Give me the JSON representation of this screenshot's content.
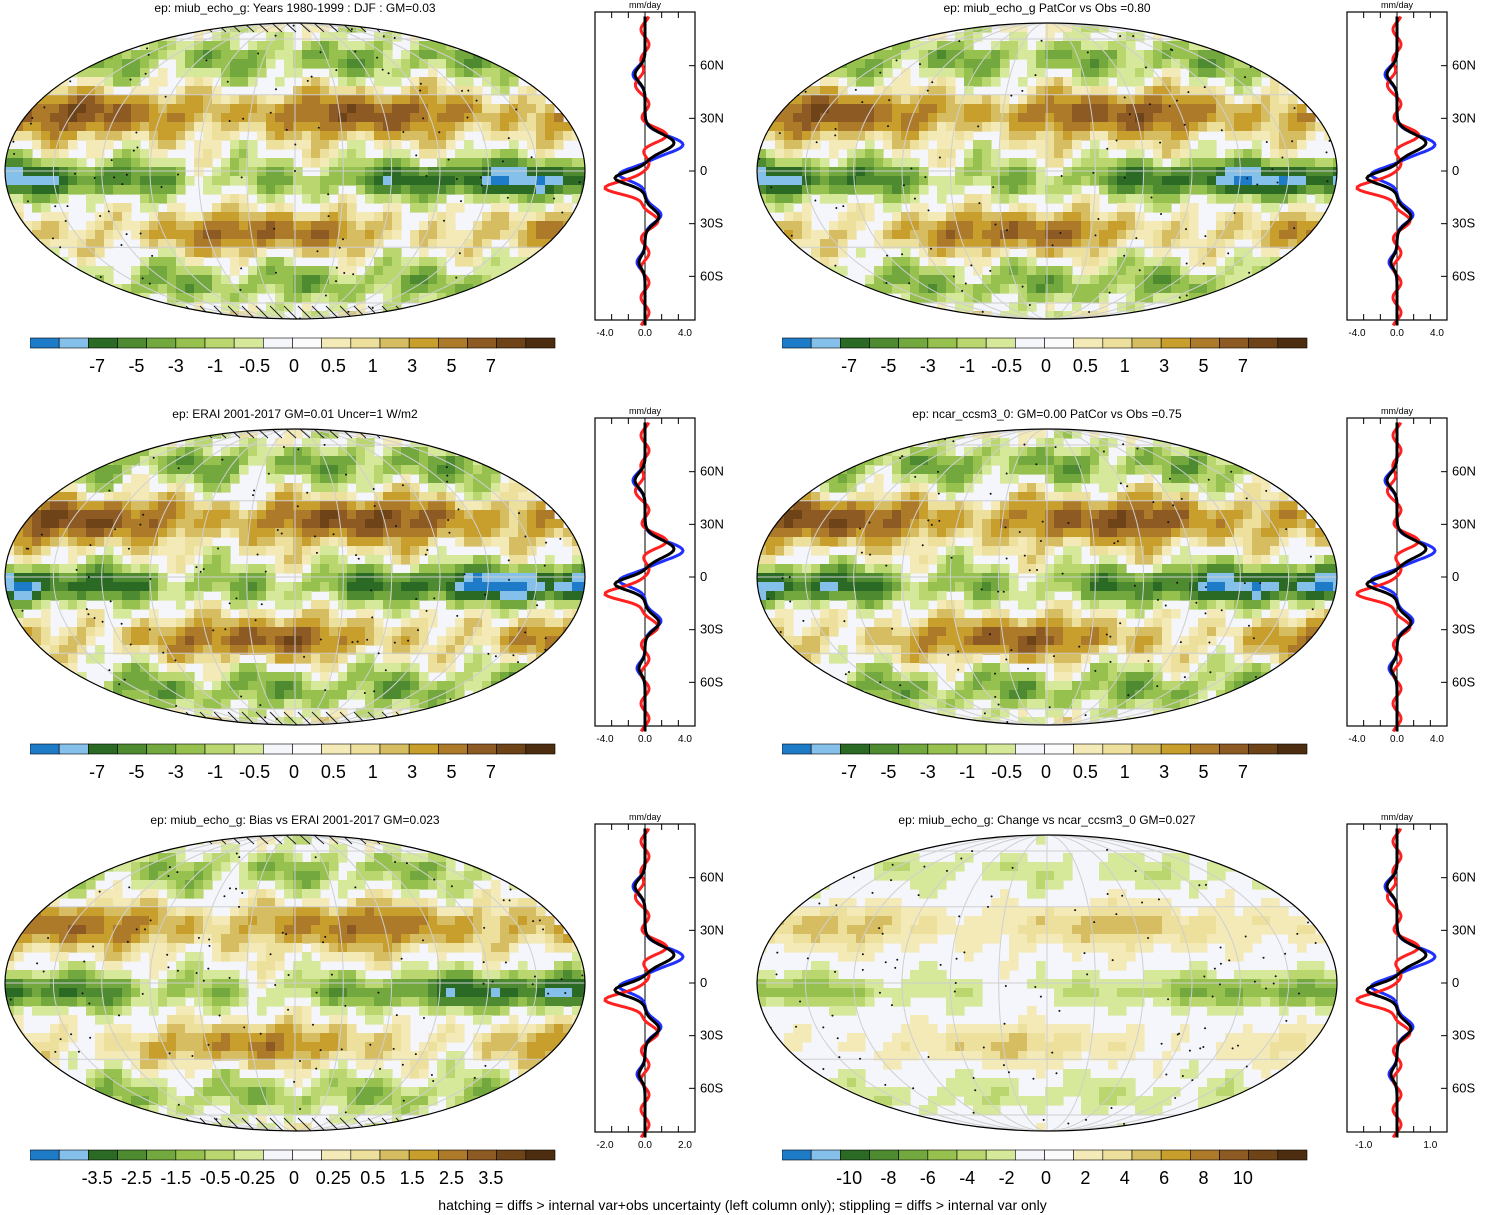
{
  "colors": {
    "palette": [
      "#1e7bc8",
      "#84c0ea",
      "#2b6a25",
      "#4e8a2f",
      "#72a83d",
      "#97c14f",
      "#b9d66f",
      "#d6e89a",
      "#f4f6fb",
      "#fbfbfb",
      "#f4eab7",
      "#ece09c",
      "#d7bd62",
      "#c89e2c",
      "#ad7a2a",
      "#8e5a24",
      "#6e4317",
      "#4d2d10"
    ],
    "profile_model": "#ff2020",
    "profile_obs": "#2030ff",
    "profile_mean": "#000000"
  },
  "footnote": "hatching = diffs > internal var+obs uncertainty (left column only); stippling = diffs > internal var only",
  "chart_data": [
    {
      "type": "heatmap",
      "title": "ep: miub_echo_g: Years 1980-1999 : DJF : GM=0.03",
      "colorbar": [
        "-7",
        "-5",
        "-3",
        "-1",
        "-0.5",
        "0",
        "0.5",
        "1",
        "3",
        "5",
        "7"
      ],
      "profile": {
        "unit": "mm/day",
        "xticks": [
          "-4.0",
          "0.0",
          "4.0"
        ],
        "xlim": [
          -5,
          5
        ],
        "ylabels": [
          "60N",
          "30N",
          "0",
          "30S",
          "60S"
        ]
      },
      "hatching": true,
      "strength": 1.0
    },
    {
      "type": "heatmap",
      "title": "ep: miub_echo_g PatCor vs Obs =0.80",
      "colorbar": [
        "-7",
        "-5",
        "-3",
        "-1",
        "-0.5",
        "0",
        "0.5",
        "1",
        "3",
        "5",
        "7"
      ],
      "profile": {
        "unit": "mm/day",
        "xticks": [
          "-4.0",
          "0.0",
          "4.0"
        ],
        "xlim": [
          -5,
          5
        ],
        "ylabels": [
          "60N",
          "30N",
          "0",
          "30S",
          "60S"
        ]
      },
      "hatching": false,
      "strength": 1.0
    },
    {
      "type": "heatmap",
      "title": "ep: ERAI 2001-2017 GM=0.01 Uncer=1 W/m2",
      "colorbar": [
        "-7",
        "-5",
        "-3",
        "-1",
        "-0.5",
        "0",
        "0.5",
        "1",
        "3",
        "5",
        "7"
      ],
      "profile": {
        "unit": "mm/day",
        "xticks": [
          "-4.0",
          "0.0",
          "4.0"
        ],
        "xlim": [
          -5,
          5
        ],
        "ylabels": [
          "60N",
          "30N",
          "0",
          "30S",
          "60S"
        ]
      },
      "hatching": true,
      "strength": 1.1
    },
    {
      "type": "heatmap",
      "title": "ep: ncar_ccsm3_0: GM=0.00 PatCor vs Obs =0.75",
      "colorbar": [
        "-7",
        "-5",
        "-3",
        "-1",
        "-0.5",
        "0",
        "0.5",
        "1",
        "3",
        "5",
        "7"
      ],
      "profile": {
        "unit": "mm/day",
        "xticks": [
          "-4.0",
          "0.0",
          "4.0"
        ],
        "xlim": [
          -5,
          5
        ],
        "ylabels": [
          "60N",
          "30N",
          "0",
          "30S",
          "60S"
        ]
      },
      "hatching": false,
      "strength": 1.05
    },
    {
      "type": "heatmap",
      "title": "ep: miub_echo_g: Bias vs ERAI 2001-2017 GM=0.023",
      "colorbar": [
        "-3.5",
        "-2.5",
        "-1.5",
        "-0.5",
        "-0.25",
        "0",
        "0.25",
        "0.5",
        "1.5",
        "2.5",
        "3.5"
      ],
      "profile": {
        "unit": "mm/day",
        "xticks": [
          "-2.0",
          "0.0",
          "2.0"
        ],
        "xlim": [
          -2.5,
          2.5
        ],
        "ylabels": [
          "60N",
          "30N",
          "0",
          "30S",
          "60S"
        ]
      },
      "hatching": true,
      "strength": 0.8
    },
    {
      "type": "heatmap",
      "title": "ep: miub_echo_g: Change vs ncar_ccsm3_0 GM=0.027",
      "colorbar": [
        "-10",
        "-8",
        "-6",
        "-4",
        "-2",
        "0",
        "2",
        "4",
        "6",
        "8",
        "10"
      ],
      "profile": {
        "unit": "mm/day",
        "xticks": [
          "-1.0",
          "1.0"
        ],
        "xlim": [
          -1.5,
          1.5
        ],
        "ylabels": [
          "60N",
          "30N",
          "0",
          "30S",
          "60S"
        ]
      },
      "hatching": false,
      "strength": 0.35
    }
  ]
}
